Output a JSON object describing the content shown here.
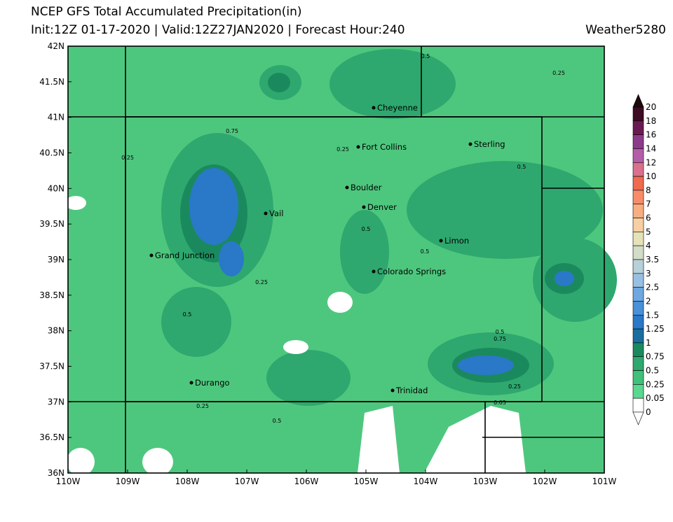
{
  "header": {
    "title": "NCEP GFS Total Accumulated Precipitation(in)",
    "subtitle": "Init:12Z 01-17-2020 | Valid:12Z27JAN2020 | Forecast Hour:240",
    "brand": "Weather5280"
  },
  "map": {
    "lat_labels": [
      "42N",
      "41.5N",
      "41N",
      "40.5N",
      "40N",
      "39.5N",
      "39N",
      "38.5N",
      "38N",
      "37.5N",
      "37N",
      "36.5N",
      "36N"
    ],
    "lon_labels": [
      "110W",
      "109W",
      "108W",
      "107W",
      "106W",
      "105W",
      "104W",
      "103W",
      "102W",
      "101W"
    ],
    "cities": [
      "Cheyenne",
      "Fort Collins",
      "Sterling",
      "Boulder",
      "Denver",
      "Vail",
      "Limon",
      "Grand Junction",
      "Colorado Springs",
      "Durango",
      "Trinidad"
    ],
    "contour_labels": [
      "0.5",
      "0.25",
      "0.75",
      "0.25",
      "0.25",
      "0.5",
      "0.5",
      "0.5",
      "0.25",
      "0.5",
      "0.5",
      "0.75",
      "0.25",
      "0.25",
      "0.05",
      "0.5"
    ]
  },
  "colorbar": {
    "labels": [
      "20",
      "18",
      "16",
      "14",
      "12",
      "10",
      "8",
      "7",
      "6",
      "5",
      "4",
      "3.5",
      "3",
      "2.5",
      "2",
      "1.5",
      "1.25",
      "1",
      "0.75",
      "0.5",
      "0.25",
      "0.05",
      "0"
    ],
    "colors": [
      "#1c0a0a",
      "#3d0b22",
      "#6a1a52",
      "#8e3a8a",
      "#b45ea8",
      "#d9708e",
      "#f06a50",
      "#f88c6a",
      "#f8ae80",
      "#f8cfa2",
      "#e6e2b8",
      "#d2dcc6",
      "#b8d0d8",
      "#98c0e2",
      "#6ea8e0",
      "#4890d8",
      "#2a78c8",
      "#1a6e9e",
      "#1a8a5e",
      "#2ea86e",
      "#40c07a",
      "#5ad890",
      "#ffffff",
      "#ffffff"
    ]
  }
}
